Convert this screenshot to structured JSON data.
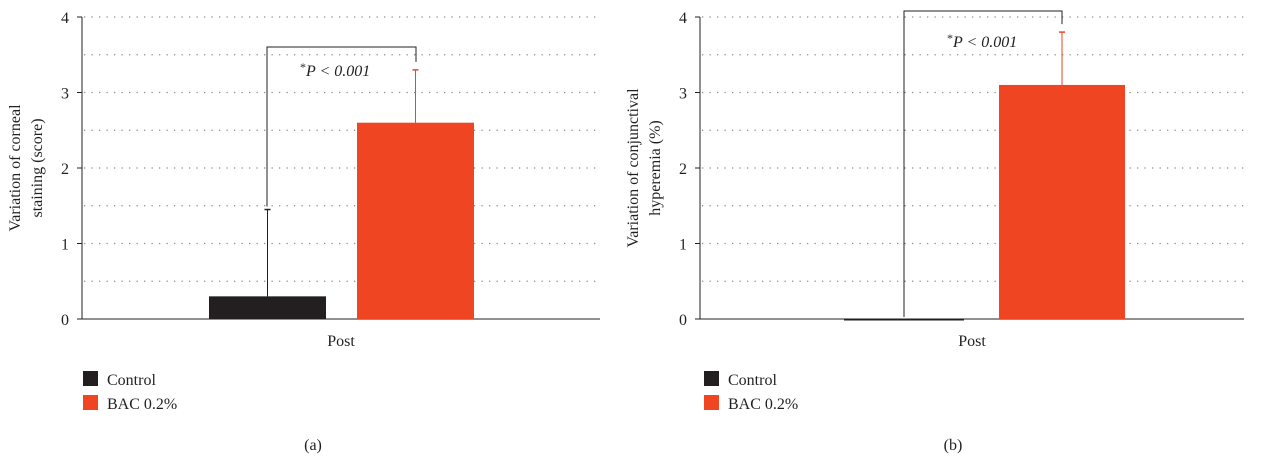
{
  "figure": {
    "panel_labels": [
      "(a)",
      "(b)"
    ]
  },
  "colors": {
    "control": "#231f20",
    "bac": "#ef4523",
    "error_control": "#231f20",
    "error_bac": "#ef4523",
    "grid": "#8c8c8c",
    "axis": "#231f20"
  },
  "chart_data": [
    {
      "type": "bar",
      "panel": "(a)",
      "categories": [
        "Post"
      ],
      "series": [
        {
          "name": "Control",
          "values": [
            0.3
          ],
          "error": [
            1.15
          ]
        },
        {
          "name": "BAC 0.2%",
          "values": [
            2.6
          ],
          "error": [
            0.7
          ]
        }
      ],
      "ylabel_lines": [
        "Variation of corneal",
        "staining (score)"
      ],
      "xlabel": "",
      "ylim": [
        0,
        4
      ],
      "yticks": [
        0,
        1,
        2,
        3,
        4
      ],
      "grid": true,
      "legend": [
        "Control",
        "BAC 0.2%"
      ],
      "legend_position": "bottom-left",
      "significance": {
        "prefix": "*",
        "text": "P < 0.001"
      }
    },
    {
      "type": "bar",
      "panel": "(b)",
      "categories": [
        "Post"
      ],
      "series": [
        {
          "name": "Control",
          "values": [
            0.0
          ],
          "error": [
            0.0
          ]
        },
        {
          "name": "BAC 0.2%",
          "values": [
            3.1
          ],
          "error": [
            0.7
          ]
        }
      ],
      "ylabel_lines": [
        "Variation of conjunctival",
        "hyperemia (%)"
      ],
      "xlabel": "",
      "ylim": [
        0,
        4
      ],
      "yticks": [
        0,
        1,
        2,
        3,
        4
      ],
      "grid": true,
      "legend": [
        "Control",
        "BAC 0.2%"
      ],
      "legend_position": "bottom-left",
      "significance": {
        "prefix": "*",
        "text": "P < 0.001"
      }
    }
  ]
}
